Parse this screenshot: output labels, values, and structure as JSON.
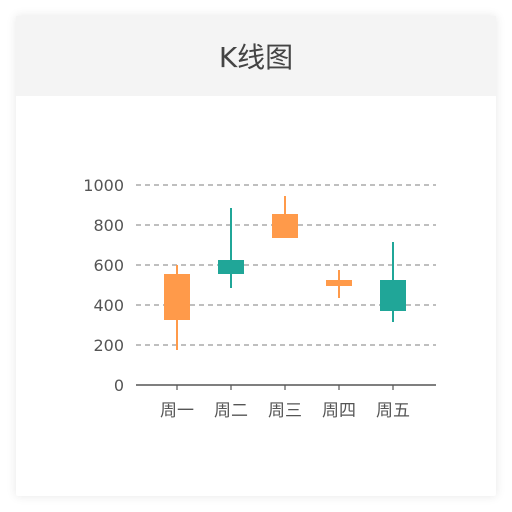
{
  "card": {
    "title": "K线图"
  },
  "colors": {
    "up": "#ff9a4a",
    "down": "#20a698",
    "grid": "#999999",
    "axis": "#555555",
    "label": "#555555"
  },
  "chart_data": {
    "type": "candlestick",
    "title": "K线图",
    "categories": [
      "周一",
      "周二",
      "周三",
      "周四",
      "周五"
    ],
    "series": [
      {
        "category": "周一",
        "open": 325,
        "close": 555,
        "low": 175,
        "high": 600,
        "direction": "up"
      },
      {
        "category": "周二",
        "open": 625,
        "close": 555,
        "low": 485,
        "high": 885,
        "direction": "down"
      },
      {
        "category": "周三",
        "open": 735,
        "close": 855,
        "low": 735,
        "high": 945,
        "direction": "up"
      },
      {
        "category": "周四",
        "open": 495,
        "close": 525,
        "low": 435,
        "high": 575,
        "direction": "up"
      },
      {
        "category": "周五",
        "open": 525,
        "close": 370,
        "low": 315,
        "high": 715,
        "direction": "down"
      }
    ],
    "yticks": [
      "0",
      "200",
      "400",
      "600",
      "800",
      "1000"
    ],
    "ylim": [
      0,
      1000
    ],
    "grid": true,
    "grid_style": "dashed"
  }
}
